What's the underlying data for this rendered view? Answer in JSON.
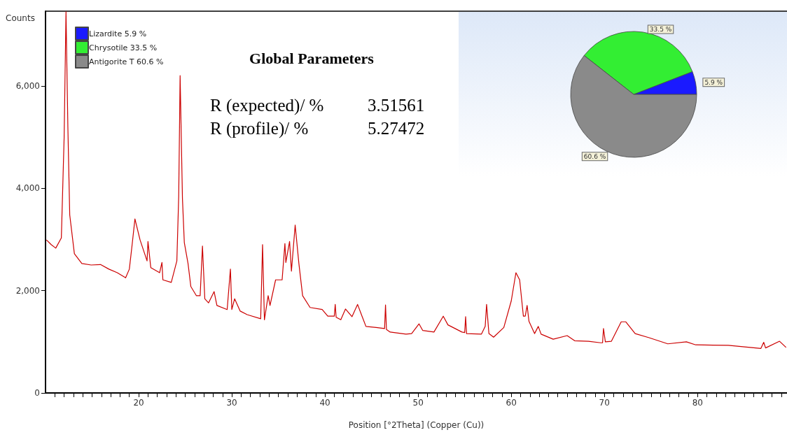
{
  "chart_data": [
    {
      "type": "line",
      "xlabel": "Position [°2Theta] (Copper (Cu))",
      "ylabel": "Counts",
      "annotations": [
        "Global Parameters",
        "R (expected)/ %",
        "3.51561",
        "R (profile)/ %",
        "5.27472"
      ],
      "xlim": [
        10,
        89.6
      ],
      "ylim": [
        0,
        7460
      ],
      "yticks": [
        0,
        {
          "value": 2000,
          "label": "2,000"
        },
        {
          "value": 4000,
          "label": "4,000"
        },
        {
          "value": 6000,
          "label": "6,000"
        }
      ],
      "xticks": [
        {
          "value": 11,
          "label": null
        },
        {
          "value": 12,
          "label": null
        },
        {
          "value": 13,
          "label": null
        },
        {
          "value": 14,
          "label": null
        },
        {
          "value": 15,
          "label": null
        },
        {
          "value": 16,
          "label": null
        },
        {
          "value": 17,
          "label": null
        },
        {
          "value": 18,
          "label": null
        },
        {
          "value": 19,
          "label": null
        },
        20,
        {
          "value": 21,
          "label": null
        },
        {
          "value": 22,
          "label": null
        },
        {
          "value": 23,
          "label": null
        },
        {
          "value": 24,
          "label": null
        },
        {
          "value": 25,
          "label": null
        },
        {
          "value": 26,
          "label": null
        },
        {
          "value": 27,
          "label": null
        },
        {
          "value": 28,
          "label": null
        },
        {
          "value": 29,
          "label": null
        },
        30,
        {
          "value": 31,
          "label": null
        },
        {
          "value": 32,
          "label": null
        },
        {
          "value": 33,
          "label": null
        },
        {
          "value": 34,
          "label": null
        },
        {
          "value": 35,
          "label": null
        },
        {
          "value": 36,
          "label": null
        },
        {
          "value": 37,
          "label": null
        },
        {
          "value": 38,
          "label": null
        },
        {
          "value": 39,
          "label": null
        },
        40,
        {
          "value": 41,
          "label": null
        },
        {
          "value": 42,
          "label": null
        },
        {
          "value": 43,
          "label": null
        },
        {
          "value": 44,
          "label": null
        },
        {
          "value": 45,
          "label": null
        },
        {
          "value": 46,
          "label": null
        },
        {
          "value": 47,
          "label": null
        },
        {
          "value": 48,
          "label": null
        },
        {
          "value": 49,
          "label": null
        },
        50,
        {
          "value": 51,
          "label": null
        },
        {
          "value": 52,
          "label": null
        },
        {
          "value": 53,
          "label": null
        },
        {
          "value": 54,
          "label": null
        },
        {
          "value": 55,
          "label": null
        },
        {
          "value": 56,
          "label": null
        },
        {
          "value": 57,
          "label": null
        },
        {
          "value": 58,
          "label": null
        },
        {
          "value": 59,
          "label": null
        },
        60,
        {
          "value": 61,
          "label": null
        },
        {
          "value": 62,
          "label": null
        },
        {
          "value": 63,
          "label": null
        },
        {
          "value": 64,
          "label": null
        },
        {
          "value": 65,
          "label": null
        },
        {
          "value": 66,
          "label": null
        },
        {
          "value": 67,
          "label": null
        },
        {
          "value": 68,
          "label": null
        },
        {
          "value": 69,
          "label": null
        },
        70,
        {
          "value": 71,
          "label": null
        },
        {
          "value": 72,
          "label": null
        },
        {
          "value": 73,
          "label": null
        },
        {
          "value": 74,
          "label": null
        },
        {
          "value": 75,
          "label": null
        },
        {
          "value": 76,
          "label": null
        },
        {
          "value": 77,
          "label": null
        },
        {
          "value": 78,
          "label": null
        },
        {
          "value": 79,
          "label": null
        },
        80,
        {
          "value": 81,
          "label": null
        },
        {
          "value": 82,
          "label": null
        },
        {
          "value": 83,
          "label": null
        },
        {
          "value": 84,
          "label": null
        },
        {
          "value": 85,
          "label": null
        },
        {
          "value": 86,
          "label": null
        },
        {
          "value": 87,
          "label": null
        },
        {
          "value": 88,
          "label": null
        },
        {
          "value": 89,
          "label": null
        }
      ],
      "grid": false,
      "marker": "none",
      "series": [
        {
          "color": "#cc0000",
          "x": [
            10.1,
            10.6,
            11.1,
            11.7,
            12.0,
            12.2,
            12.4,
            12.6,
            13.1,
            13.9,
            14.9,
            15.9,
            16.8,
            17.7,
            18.6,
            19.0,
            19.3,
            19.6,
            20.15,
            20.9,
            21.0,
            21.3,
            22.25,
            22.5,
            22.6,
            23.5,
            24.1,
            24.3,
            24.45,
            24.7,
            24.9,
            25.3,
            25.6,
            26.2,
            26.6,
            26.85,
            27.1,
            27.5,
            28.1,
            28.4,
            29.5,
            29.85,
            30.0,
            30.3,
            30.9,
            31.65,
            33.1,
            33.3,
            33.5,
            33.9,
            34.1,
            34.7,
            35.4,
            35.7,
            35.8,
            36.2,
            36.4,
            36.8,
            37.2,
            37.6,
            38.4,
            39.7,
            40.3,
            41.0,
            41.1,
            41.2,
            41.7,
            42.2,
            42.9,
            43.5,
            44.0,
            44.4,
            45.5,
            46.4,
            46.5,
            46.6,
            47.0,
            48.7,
            49.3,
            50.1,
            50.5,
            51.7,
            52.7,
            53.2,
            54.7,
            55.0,
            55.1,
            55.2,
            56.8,
            57.2,
            57.35,
            57.6,
            58.1,
            59.2,
            60.0,
            60.5,
            60.9,
            61.3,
            61.5,
            61.7,
            61.9,
            62.5,
            62.9,
            63.2,
            64.5,
            66.0,
            66.8,
            68.3,
            69.6,
            69.8,
            69.9,
            70.1,
            70.75,
            71.8,
            72.3,
            73.3,
            74.8,
            76.8,
            78.8,
            79.8,
            83.3,
            86.8,
            87.1,
            87.3,
            88.8,
            89.5
          ],
          "values": [
            2990,
            2900,
            2830,
            3030,
            5000,
            7450,
            5200,
            3480,
            2720,
            2530,
            2500,
            2510,
            2420,
            2350,
            2250,
            2420,
            2900,
            3400,
            2990,
            2580,
            2960,
            2450,
            2350,
            2550,
            2210,
            2160,
            2580,
            3850,
            6200,
            3800,
            2940,
            2530,
            2080,
            1900,
            1900,
            2870,
            1840,
            1760,
            1980,
            1710,
            1630,
            2420,
            1630,
            1840,
            1600,
            1530,
            1450,
            2900,
            1430,
            1900,
            1710,
            2210,
            2210,
            2920,
            2550,
            2960,
            2380,
            3280,
            2530,
            1900,
            1670,
            1630,
            1500,
            1500,
            1730,
            1480,
            1430,
            1640,
            1490,
            1730,
            1490,
            1300,
            1280,
            1260,
            1720,
            1240,
            1190,
            1150,
            1160,
            1350,
            1220,
            1190,
            1500,
            1330,
            1190,
            1180,
            1490,
            1160,
            1150,
            1300,
            1730,
            1160,
            1090,
            1280,
            1800,
            2350,
            2210,
            1500,
            1500,
            1710,
            1400,
            1160,
            1300,
            1150,
            1050,
            1120,
            1020,
            1010,
            980,
            980,
            1260,
            1000,
            1010,
            1390,
            1390,
            1160,
            1080,
            960,
            1000,
            940,
            930,
            870,
            990,
            880,
            1010,
            890
          ]
        }
      ]
    },
    {
      "type": "pie",
      "categories": [
        "Lizardite 5.9 %",
        "Chrysotile 33.5 %",
        "Antigorite T 60.6 %"
      ],
      "values": [
        5.9,
        33.5,
        60.6
      ],
      "colors": [
        "#1a1aff",
        "#33ee33",
        "#8a8a8a"
      ],
      "value_labels": [
        "5.9 %",
        "33.5 %",
        "60.6 %"
      ],
      "legend": "top left"
    }
  ]
}
